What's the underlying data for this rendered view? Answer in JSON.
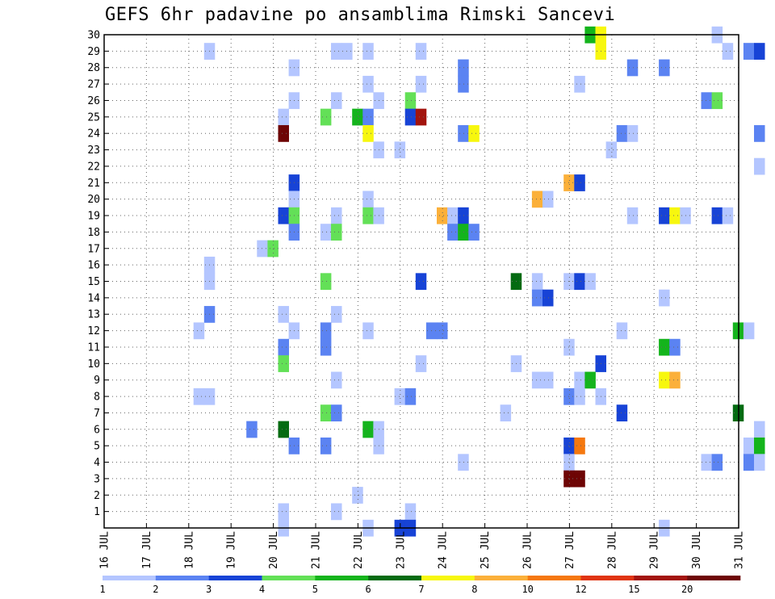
{
  "chart_data": {
    "type": "heatmap",
    "title": "GEFS 6hr padavine po ansamblima Rimski Sancevi",
    "xlabel": "",
    "ylabel": "",
    "x_ticks": [
      "16 JUL",
      "17 JUL",
      "18 JUL",
      "19 JUL",
      "20 JUL",
      "21 JUL",
      "22 JUL",
      "23 JUL",
      "24 JUL",
      "25 JUL",
      "26 JUL",
      "27 JUL",
      "28 JUL",
      "29 JUL",
      "30 JUL",
      "31 JUL"
    ],
    "y_ticks": [
      1,
      2,
      3,
      4,
      5,
      6,
      7,
      8,
      9,
      10,
      11,
      12,
      13,
      14,
      15,
      16,
      17,
      18,
      19,
      20,
      21,
      22,
      23,
      24,
      25,
      26,
      27,
      28,
      29,
      30
    ],
    "xlim": [
      "16 JUL",
      "31 JUL"
    ],
    "ylim": [
      0,
      30
    ],
    "grid": true,
    "x_step": "6hr",
    "colorbar": {
      "labels": [
        "1",
        "2",
        "3",
        "4",
        "5",
        "6",
        "7",
        "8",
        "10",
        "12",
        "15",
        "20"
      ],
      "colors": [
        "#b4c6ff",
        "#5b83f2",
        "#1743d6",
        "#63e057",
        "#14b41c",
        "#046b12",
        "#f7f70e",
        "#fbb03a",
        "#f5780f",
        "#e03411",
        "#a3140e",
        "#6e0505"
      ]
    },
    "cells": [
      {
        "member": 30,
        "time_index": 45,
        "level": 4
      },
      {
        "member": 30,
        "time_index": 46,
        "level": 6
      },
      {
        "member": 30,
        "time_index": 57,
        "level": 0
      },
      {
        "member": 29,
        "time_index": 9,
        "level": 0
      },
      {
        "member": 29,
        "time_index": 21,
        "level": 0
      },
      {
        "member": 29,
        "time_index": 22,
        "level": 0
      },
      {
        "member": 29,
        "time_index": 24,
        "level": 0
      },
      {
        "member": 29,
        "time_index": 29,
        "level": 0
      },
      {
        "member": 29,
        "time_index": 46,
        "level": 6
      },
      {
        "member": 29,
        "time_index": 58,
        "level": 0
      },
      {
        "member": 29,
        "time_index": 60,
        "level": 1
      },
      {
        "member": 29,
        "time_index": 61,
        "level": 2
      },
      {
        "member": 28,
        "time_index": 17,
        "level": 0
      },
      {
        "member": 28,
        "time_index": 33,
        "level": 1
      },
      {
        "member": 28,
        "time_index": 49,
        "level": 1
      },
      {
        "member": 28,
        "time_index": 52,
        "level": 1
      },
      {
        "member": 27,
        "time_index": 24,
        "level": 0
      },
      {
        "member": 27,
        "time_index": 29,
        "level": 0
      },
      {
        "member": 27,
        "time_index": 33,
        "level": 1
      },
      {
        "member": 27,
        "time_index": 44,
        "level": 0
      },
      {
        "member": 26,
        "time_index": 17,
        "level": 0
      },
      {
        "member": 26,
        "time_index": 21,
        "level": 0
      },
      {
        "member": 26,
        "time_index": 25,
        "level": 0
      },
      {
        "member": 26,
        "time_index": 28,
        "level": 3
      },
      {
        "member": 26,
        "time_index": 56,
        "level": 1
      },
      {
        "member": 26,
        "time_index": 57,
        "level": 3
      },
      {
        "member": 25,
        "time_index": 16,
        "level": 0
      },
      {
        "member": 25,
        "time_index": 20,
        "level": 3
      },
      {
        "member": 25,
        "time_index": 23,
        "level": 4
      },
      {
        "member": 25,
        "time_index": 24,
        "level": 1
      },
      {
        "member": 25,
        "time_index": 28,
        "level": 2
      },
      {
        "member": 25,
        "time_index": 29,
        "level": 10
      },
      {
        "member": 24,
        "time_index": 16,
        "level": 11
      },
      {
        "member": 24,
        "time_index": 24,
        "level": 6
      },
      {
        "member": 24,
        "time_index": 33,
        "level": 1
      },
      {
        "member": 24,
        "time_index": 34,
        "level": 6
      },
      {
        "member": 24,
        "time_index": 48,
        "level": 1
      },
      {
        "member": 24,
        "time_index": 49,
        "level": 0
      },
      {
        "member": 24,
        "time_index": 61,
        "level": 1
      },
      {
        "member": 23,
        "time_index": 25,
        "level": 0
      },
      {
        "member": 23,
        "time_index": 27,
        "level": 0
      },
      {
        "member": 23,
        "time_index": 47,
        "level": 0
      },
      {
        "member": 22,
        "time_index": 61,
        "level": 0
      },
      {
        "member": 21,
        "time_index": 17,
        "level": 2
      },
      {
        "member": 21,
        "time_index": 43,
        "level": 7
      },
      {
        "member": 21,
        "time_index": 44,
        "level": 2
      },
      {
        "member": 20,
        "time_index": 17,
        "level": 0
      },
      {
        "member": 20,
        "time_index": 24,
        "level": 0
      },
      {
        "member": 20,
        "time_index": 40,
        "level": 7
      },
      {
        "member": 20,
        "time_index": 41,
        "level": 0
      },
      {
        "member": 19,
        "time_index": 16,
        "level": 2
      },
      {
        "member": 19,
        "time_index": 17,
        "level": 3
      },
      {
        "member": 19,
        "time_index": 21,
        "level": 0
      },
      {
        "member": 19,
        "time_index": 24,
        "level": 3
      },
      {
        "member": 19,
        "time_index": 25,
        "level": 0
      },
      {
        "member": 19,
        "time_index": 31,
        "level": 7
      },
      {
        "member": 19,
        "time_index": 32,
        "level": 0
      },
      {
        "member": 19,
        "time_index": 33,
        "level": 2
      },
      {
        "member": 19,
        "time_index": 49,
        "level": 0
      },
      {
        "member": 19,
        "time_index": 52,
        "level": 2
      },
      {
        "member": 19,
        "time_index": 53,
        "level": 6
      },
      {
        "member": 19,
        "time_index": 54,
        "level": 0
      },
      {
        "member": 19,
        "time_index": 57,
        "level": 2
      },
      {
        "member": 19,
        "time_index": 58,
        "level": 0
      },
      {
        "member": 18,
        "time_index": 17,
        "level": 1
      },
      {
        "member": 18,
        "time_index": 20,
        "level": 0
      },
      {
        "member": 18,
        "time_index": 21,
        "level": 3
      },
      {
        "member": 18,
        "time_index": 32,
        "level": 1
      },
      {
        "member": 18,
        "time_index": 33,
        "level": 4
      },
      {
        "member": 18,
        "time_index": 34,
        "level": 1
      },
      {
        "member": 17,
        "time_index": 14,
        "level": 0
      },
      {
        "member": 17,
        "time_index": 15,
        "level": 3
      },
      {
        "member": 16,
        "time_index": 9,
        "level": 0
      },
      {
        "member": 15,
        "time_index": 9,
        "level": 0
      },
      {
        "member": 15,
        "time_index": 20,
        "level": 3
      },
      {
        "member": 15,
        "time_index": 29,
        "level": 2
      },
      {
        "member": 15,
        "time_index": 38,
        "level": 5
      },
      {
        "member": 15,
        "time_index": 40,
        "level": 0
      },
      {
        "member": 15,
        "time_index": 43,
        "level": 0
      },
      {
        "member": 15,
        "time_index": 44,
        "level": 2
      },
      {
        "member": 15,
        "time_index": 45,
        "level": 0
      },
      {
        "member": 14,
        "time_index": 40,
        "level": 1
      },
      {
        "member": 14,
        "time_index": 41,
        "level": 2
      },
      {
        "member": 14,
        "time_index": 52,
        "level": 0
      },
      {
        "member": 13,
        "time_index": 9,
        "level": 1
      },
      {
        "member": 13,
        "time_index": 16,
        "level": 0
      },
      {
        "member": 13,
        "time_index": 21,
        "level": 0
      },
      {
        "member": 12,
        "time_index": 8,
        "level": 0
      },
      {
        "member": 12,
        "time_index": 17,
        "level": 0
      },
      {
        "member": 12,
        "time_index": 20,
        "level": 1
      },
      {
        "member": 12,
        "time_index": 24,
        "level": 0
      },
      {
        "member": 12,
        "time_index": 30,
        "level": 1
      },
      {
        "member": 12,
        "time_index": 31,
        "level": 1
      },
      {
        "member": 12,
        "time_index": 48,
        "level": 0
      },
      {
        "member": 12,
        "time_index": 59,
        "level": 4
      },
      {
        "member": 12,
        "time_index": 60,
        "level": 0
      },
      {
        "member": 11,
        "time_index": 16,
        "level": 1
      },
      {
        "member": 11,
        "time_index": 20,
        "level": 1
      },
      {
        "member": 11,
        "time_index": 43,
        "level": 0
      },
      {
        "member": 11,
        "time_index": 52,
        "level": 4
      },
      {
        "member": 11,
        "time_index": 53,
        "level": 1
      },
      {
        "member": 10,
        "time_index": 16,
        "level": 3
      },
      {
        "member": 10,
        "time_index": 29,
        "level": 0
      },
      {
        "member": 10,
        "time_index": 38,
        "level": 0
      },
      {
        "member": 10,
        "time_index": 46,
        "level": 2
      },
      {
        "member": 9,
        "time_index": 21,
        "level": 0
      },
      {
        "member": 9,
        "time_index": 40,
        "level": 0
      },
      {
        "member": 9,
        "time_index": 41,
        "level": 0
      },
      {
        "member": 9,
        "time_index": 44,
        "level": 0
      },
      {
        "member": 9,
        "time_index": 45,
        "level": 4
      },
      {
        "member": 9,
        "time_index": 52,
        "level": 6
      },
      {
        "member": 9,
        "time_index": 53,
        "level": 7
      },
      {
        "member": 8,
        "time_index": 8,
        "level": 0
      },
      {
        "member": 8,
        "time_index": 9,
        "level": 0
      },
      {
        "member": 8,
        "time_index": 27,
        "level": 0
      },
      {
        "member": 8,
        "time_index": 28,
        "level": 1
      },
      {
        "member": 8,
        "time_index": 43,
        "level": 1
      },
      {
        "member": 8,
        "time_index": 44,
        "level": 0
      },
      {
        "member": 8,
        "time_index": 46,
        "level": 0
      },
      {
        "member": 7,
        "time_index": 20,
        "level": 3
      },
      {
        "member": 7,
        "time_index": 21,
        "level": 1
      },
      {
        "member": 7,
        "time_index": 37,
        "level": 0
      },
      {
        "member": 7,
        "time_index": 48,
        "level": 2
      },
      {
        "member": 7,
        "time_index": 59,
        "level": 5
      },
      {
        "member": 6,
        "time_index": 13,
        "level": 1
      },
      {
        "member": 6,
        "time_index": 16,
        "level": 5
      },
      {
        "member": 6,
        "time_index": 24,
        "level": 4
      },
      {
        "member": 6,
        "time_index": 25,
        "level": 0
      },
      {
        "member": 6,
        "time_index": 61,
        "level": 0
      },
      {
        "member": 5,
        "time_index": 17,
        "level": 1
      },
      {
        "member": 5,
        "time_index": 20,
        "level": 1
      },
      {
        "member": 5,
        "time_index": 25,
        "level": 0
      },
      {
        "member": 5,
        "time_index": 43,
        "level": 2
      },
      {
        "member": 5,
        "time_index": 44,
        "level": 8
      },
      {
        "member": 5,
        "time_index": 60,
        "level": 0
      },
      {
        "member": 5,
        "time_index": 61,
        "level": 4
      },
      {
        "member": 4,
        "time_index": 33,
        "level": 0
      },
      {
        "member": 4,
        "time_index": 43,
        "level": 0
      },
      {
        "member": 4,
        "time_index": 56,
        "level": 0
      },
      {
        "member": 4,
        "time_index": 57,
        "level": 1
      },
      {
        "member": 4,
        "time_index": 60,
        "level": 1
      },
      {
        "member": 4,
        "time_index": 61,
        "level": 0
      },
      {
        "member": 3,
        "time_index": 43,
        "level": 11
      },
      {
        "member": 3,
        "time_index": 44,
        "level": 11
      },
      {
        "member": 2,
        "time_index": 23,
        "level": 0
      },
      {
        "member": 1,
        "time_index": 16,
        "level": 0
      },
      {
        "member": 1,
        "time_index": 21,
        "level": 0
      },
      {
        "member": 1,
        "time_index": 28,
        "level": 0
      },
      {
        "member": 0,
        "time_index": 16,
        "level": 0
      },
      {
        "member": 0,
        "time_index": 24,
        "level": 0
      },
      {
        "member": 0,
        "time_index": 27,
        "level": 2
      },
      {
        "member": 0,
        "time_index": 28,
        "level": 2
      },
      {
        "member": 0,
        "time_index": 52,
        "level": 0
      }
    ]
  }
}
